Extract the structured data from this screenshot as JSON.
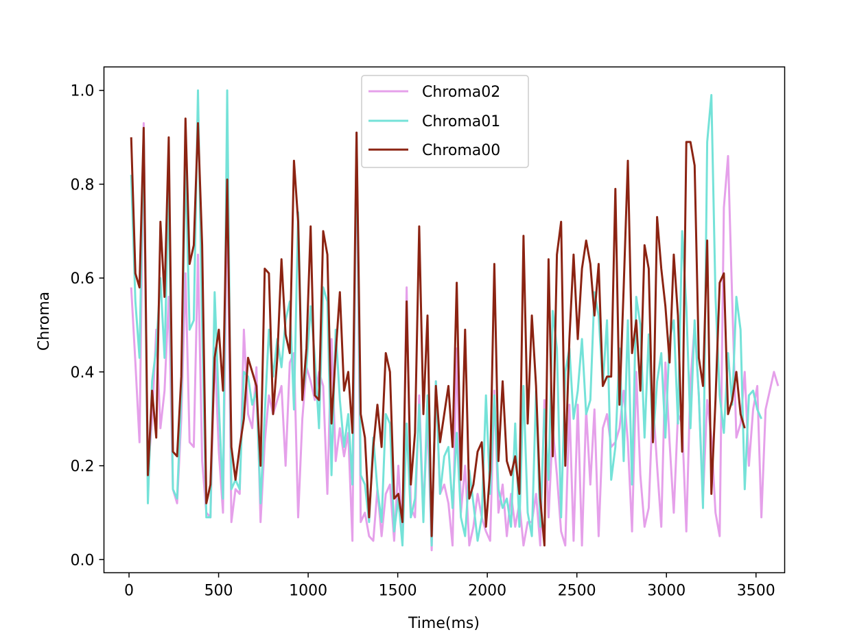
{
  "chart_data": {
    "type": "line",
    "xlabel": "Time(ms)",
    "ylabel": "Chroma",
    "xlim": [
      -140,
      3660
    ],
    "ylim": [
      -0.028,
      1.05
    ],
    "xticks": [
      0,
      500,
      1000,
      1500,
      2000,
      2500,
      3000,
      3500
    ],
    "yticks": [
      0.0,
      0.2,
      0.4,
      0.6,
      0.8,
      1.0
    ],
    "xtick_labels": [
      "0",
      "500",
      "1000",
      "1500",
      "2000",
      "2500",
      "3000",
      "3500"
    ],
    "ytick_labels": [
      "0.0",
      "0.2",
      "0.4",
      "0.6",
      "0.8",
      "1.0"
    ],
    "grid": false,
    "legend_position": "top-center",
    "x_start": 12,
    "x_step": 23.3,
    "series": [
      {
        "name": "Chroma02",
        "color": "#e5a0ea",
        "values": [
          0.58,
          0.42,
          0.25,
          0.93,
          0.18,
          0.3,
          0.49,
          0.28,
          0.36,
          0.56,
          0.15,
          0.12,
          0.3,
          0.61,
          0.25,
          0.24,
          0.65,
          0.21,
          0.1,
          0.09,
          0.45,
          0.23,
          0.1,
          0.81,
          0.08,
          0.15,
          0.14,
          0.49,
          0.31,
          0.28,
          0.41,
          0.08,
          0.25,
          0.35,
          0.31,
          0.34,
          0.37,
          0.2,
          0.42,
          0.44,
          0.09,
          0.3,
          0.41,
          0.38,
          0.34,
          0.4,
          0.37,
          0.14,
          0.47,
          0.21,
          0.28,
          0.22,
          0.27,
          0.04,
          0.91,
          0.08,
          0.1,
          0.05,
          0.04,
          0.15,
          0.05,
          0.14,
          0.16,
          0.04,
          0.2,
          0.05,
          0.58,
          0.11,
          0.09,
          0.35,
          0.1,
          0.3,
          0.02,
          0.38,
          0.14,
          0.16,
          0.12,
          0.03,
          0.45,
          0.1,
          0.2,
          0.03,
          0.07,
          0.14,
          0.09,
          0.06,
          0.04,
          0.36,
          0.1,
          0.16,
          0.05,
          0.14,
          0.07,
          0.12,
          0.03,
          0.08,
          0.08,
          0.14,
          0.03,
          0.34,
          0.09,
          0.28,
          0.18,
          0.06,
          0.03,
          0.33,
          0.04,
          0.33,
          0.03,
          0.32,
          0.16,
          0.32,
          0.05,
          0.28,
          0.31,
          0.24,
          0.25,
          0.28,
          0.36,
          0.25,
          0.06,
          0.4,
          0.18,
          0.07,
          0.11,
          0.34,
          0.2,
          0.07,
          0.42,
          0.25,
          0.1,
          0.31,
          0.29,
          0.06,
          0.38,
          0.5,
          0.35,
          0.13,
          0.34,
          0.26,
          0.1,
          0.05,
          0.75,
          0.86,
          0.55,
          0.26,
          0.29,
          0.4,
          0.2,
          0.32,
          0.37,
          0.09,
          0.32,
          0.36,
          0.4,
          0.37
        ],
        "extra_marks": [
          "0.40"
        ]
      },
      {
        "name": "Chroma01",
        "color": "#74e2d8",
        "values": [
          0.82,
          0.55,
          0.43,
          0.92,
          0.12,
          0.38,
          0.45,
          0.6,
          0.43,
          0.8,
          0.15,
          0.13,
          0.35,
          0.85,
          0.49,
          0.51,
          1.0,
          0.5,
          0.09,
          0.09,
          0.57,
          0.33,
          0.13,
          1.0,
          0.15,
          0.17,
          0.15,
          0.4,
          0.39,
          0.33,
          0.36,
          0.12,
          0.31,
          0.49,
          0.39,
          0.47,
          0.41,
          0.51,
          0.55,
          0.32,
          0.74,
          0.35,
          0.41,
          0.54,
          0.43,
          0.28,
          0.58,
          0.55,
          0.18,
          0.49,
          0.34,
          0.24,
          0.31,
          0.16,
          0.91,
          0.18,
          0.16,
          0.08,
          0.26,
          0.15,
          0.08,
          0.31,
          0.29,
          0.06,
          0.13,
          0.03,
          0.29,
          0.09,
          0.13,
          0.33,
          0.08,
          0.35,
          0.03,
          0.38,
          0.14,
          0.22,
          0.24,
          0.11,
          0.27,
          0.09,
          0.05,
          0.19,
          0.12,
          0.04,
          0.09,
          0.35,
          0.14,
          0.35,
          0.15,
          0.11,
          0.13,
          0.07,
          0.29,
          0.07,
          0.37,
          0.1,
          0.05,
          0.36,
          0.07,
          0.32,
          0.17,
          0.53,
          0.45,
          0.09,
          0.4,
          0.45,
          0.3,
          0.36,
          0.47,
          0.31,
          0.34,
          0.57,
          0.52,
          0.37,
          0.51,
          0.17,
          0.24,
          0.45,
          0.21,
          0.51,
          0.16,
          0.56,
          0.5,
          0.26,
          0.48,
          0.25,
          0.38,
          0.44,
          0.26,
          0.47,
          0.51,
          0.29,
          0.7,
          0.54,
          0.28,
          0.51,
          0.35,
          0.11,
          0.89,
          0.99,
          0.56,
          0.35,
          0.27,
          0.44,
          0.33,
          0.56,
          0.49,
          0.15,
          0.35,
          0.36,
          0.32,
          0.3
        ]
      },
      {
        "name": "Chroma00",
        "color": "#8b2312",
        "values": [
          0.9,
          0.61,
          0.58,
          0.92,
          0.18,
          0.36,
          0.26,
          0.72,
          0.56,
          0.9,
          0.23,
          0.22,
          0.39,
          0.94,
          0.63,
          0.67,
          0.93,
          0.67,
          0.12,
          0.16,
          0.43,
          0.49,
          0.36,
          0.81,
          0.24,
          0.17,
          0.24,
          0.3,
          0.43,
          0.4,
          0.37,
          0.2,
          0.62,
          0.61,
          0.31,
          0.43,
          0.64,
          0.48,
          0.44,
          0.85,
          0.72,
          0.34,
          0.45,
          0.71,
          0.35,
          0.34,
          0.7,
          0.65,
          0.29,
          0.44,
          0.57,
          0.36,
          0.4,
          0.27,
          0.91,
          0.31,
          0.26,
          0.09,
          0.24,
          0.33,
          0.24,
          0.44,
          0.4,
          0.13,
          0.14,
          0.08,
          0.55,
          0.16,
          0.27,
          0.71,
          0.31,
          0.52,
          0.05,
          0.37,
          0.25,
          0.31,
          0.37,
          0.24,
          0.59,
          0.17,
          0.49,
          0.13,
          0.16,
          0.23,
          0.25,
          0.07,
          0.19,
          0.63,
          0.21,
          0.38,
          0.21,
          0.18,
          0.22,
          0.14,
          0.69,
          0.29,
          0.52,
          0.37,
          0.13,
          0.03,
          0.64,
          0.22,
          0.65,
          0.72,
          0.2,
          0.47,
          0.65,
          0.47,
          0.62,
          0.68,
          0.63,
          0.52,
          0.63,
          0.37,
          0.39,
          0.39,
          0.79,
          0.33,
          0.58,
          0.85,
          0.44,
          0.51,
          0.36,
          0.67,
          0.62,
          0.25,
          0.73,
          0.62,
          0.54,
          0.42,
          0.65,
          0.52,
          0.23,
          0.89,
          0.89,
          0.84,
          0.43,
          0.37,
          0.68,
          0.14,
          0.34,
          0.59,
          0.61,
          0.31,
          0.34,
          0.4,
          0.31,
          0.28
        ]
      }
    ]
  }
}
